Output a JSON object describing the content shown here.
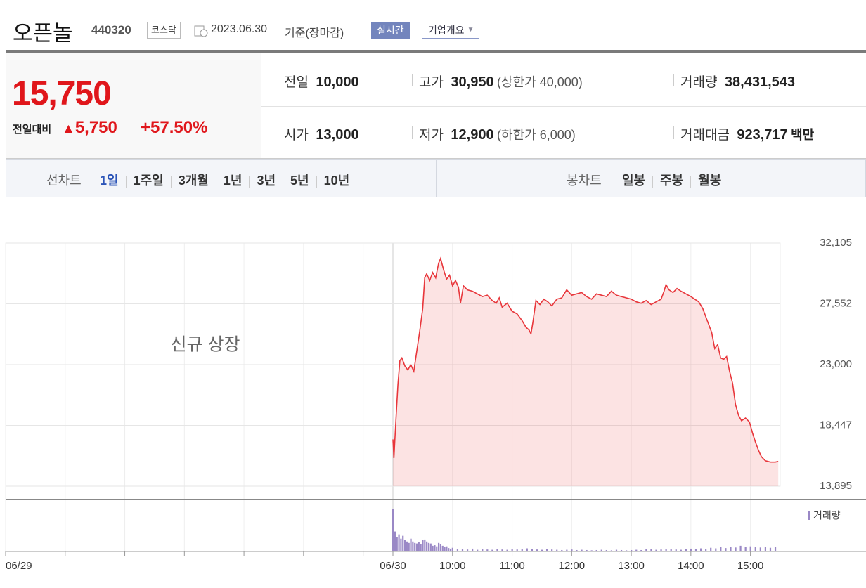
{
  "header": {
    "name": "오픈놀",
    "code": "440320",
    "market": "코스닥",
    "date": "2023.06.30",
    "basis": "기준(장마감)",
    "realtime": "실시간",
    "company": "기업개요"
  },
  "quote": {
    "price": "15,750",
    "change_label": "전일대비",
    "change": "5,750",
    "change_rate": "+57.50%",
    "prev": {
      "label": "전일",
      "value": "10,000"
    },
    "high": {
      "label": "고가",
      "value": "30,950",
      "note": "(상한가 40,000)"
    },
    "volume": {
      "label": "거래량",
      "value": "38,431,543"
    },
    "open": {
      "label": "시가",
      "value": "13,000"
    },
    "low": {
      "label": "저가",
      "value": "12,900",
      "note": "(하한가 6,000)"
    },
    "amount": {
      "label": "거래대금",
      "value": "923,717",
      "unit": "백만"
    }
  },
  "tabs": {
    "line_label": "선차트",
    "line_periods": [
      "1일",
      "1주일",
      "3개월",
      "1년",
      "3년",
      "5년",
      "10년"
    ],
    "candle_label": "봉차트",
    "candle_periods": [
      "일봉",
      "주봉",
      "월봉"
    ]
  },
  "chart_data": [
    {
      "type": "line",
      "annotation": "신규 상장",
      "color": "#e8363b",
      "x": [
        390,
        391,
        393,
        395,
        397,
        399,
        402,
        405,
        408,
        411,
        414,
        417,
        420,
        422,
        424,
        427,
        430,
        433,
        436,
        438,
        441,
        444,
        447,
        450,
        453,
        456,
        458,
        461,
        465,
        470,
        475,
        480,
        485,
        490,
        494,
        497,
        500,
        505,
        510,
        515,
        520,
        524,
        527,
        529,
        531,
        534,
        538,
        542,
        546,
        550,
        555,
        560,
        565,
        570,
        575,
        580,
        585,
        590,
        595,
        600,
        605,
        610,
        615,
        620,
        625,
        630,
        635,
        640,
        645,
        650,
        655,
        660,
        663,
        665,
        668,
        672,
        676,
        680,
        685,
        690,
        694,
        698,
        702,
        705,
        708,
        711,
        714,
        717,
        720,
        723,
        726,
        729,
        732,
        735,
        738,
        741,
        745,
        749,
        752,
        755,
        758,
        761,
        765,
        770,
        775,
        778
      ],
      "values": [
        17400,
        16000,
        18800,
        21500,
        23300,
        23500,
        22900,
        22600,
        23000,
        22500,
        24000,
        25500,
        27200,
        29500,
        29800,
        29300,
        29900,
        29500,
        30600,
        30950,
        30100,
        29400,
        29700,
        28900,
        29300,
        28800,
        27600,
        28900,
        28600,
        28500,
        28300,
        28100,
        28200,
        27800,
        27600,
        28000,
        27300,
        27600,
        27000,
        26800,
        26300,
        25800,
        25600,
        25300,
        26200,
        27800,
        27500,
        27900,
        27700,
        27400,
        27900,
        28000,
        28600,
        28200,
        28300,
        28400,
        28100,
        27900,
        28300,
        28200,
        28100,
        28500,
        28200,
        28100,
        28000,
        27900,
        27700,
        27600,
        27800,
        27500,
        27700,
        27900,
        28500,
        29000,
        28600,
        28400,
        28700,
        28500,
        28300,
        28100,
        27900,
        27700,
        27200,
        26600,
        26000,
        25400,
        24200,
        24500,
        23500,
        23400,
        23600,
        22500,
        21600,
        20000,
        19200,
        18800,
        19000,
        18700,
        17900,
        17200,
        16600,
        16100,
        15800,
        15700,
        15700,
        15750
      ],
      "xlim": [
        0,
        780
      ],
      "xticks": [
        {
          "value": 0,
          "label": "06/29"
        },
        {
          "value": 60,
          "label": null
        },
        {
          "value": 120,
          "label": null
        },
        {
          "value": 180,
          "label": null
        },
        {
          "value": 240,
          "label": null
        },
        {
          "value": 300,
          "label": null
        },
        {
          "value": 360,
          "label": null
        },
        {
          "value": 390,
          "label": "06/30"
        },
        {
          "value": 450,
          "label": "10:00"
        },
        {
          "value": 510,
          "label": "11:00"
        },
        {
          "value": 570,
          "label": "12:00"
        },
        {
          "value": 630,
          "label": "13:00"
        },
        {
          "value": 690,
          "label": "14:00"
        },
        {
          "value": 750,
          "label": "15:00"
        }
      ],
      "ylim": [
        13895,
        32105
      ],
      "yticks": [
        {
          "value": 13895,
          "label": "13,895"
        },
        {
          "value": 18447,
          "label": "18,447"
        },
        {
          "value": 23000,
          "label": "23,000"
        },
        {
          "value": 27552,
          "label": "27,552"
        },
        {
          "value": 32105,
          "label": "32,105"
        }
      ],
      "grid": true
    },
    {
      "type": "bar",
      "name": "거래량",
      "color": "#9a88c6",
      "xlim": [
        0,
        780
      ],
      "ylim": [
        0,
        1600000
      ],
      "x": [
        390,
        392,
        394,
        396,
        398,
        400,
        402,
        404,
        406,
        408,
        410,
        412,
        414,
        416,
        418,
        420,
        422,
        424,
        426,
        428,
        430,
        432,
        434,
        436,
        438,
        440,
        442,
        444,
        446,
        448,
        450,
        455,
        460,
        465,
        470,
        475,
        480,
        485,
        490,
        495,
        500,
        505,
        510,
        515,
        520,
        525,
        530,
        535,
        540,
        545,
        550,
        555,
        560,
        565,
        570,
        575,
        580,
        585,
        590,
        595,
        600,
        605,
        610,
        615,
        620,
        625,
        630,
        635,
        640,
        645,
        650,
        655,
        660,
        665,
        670,
        675,
        680,
        685,
        690,
        695,
        700,
        705,
        710,
        715,
        720,
        725,
        730,
        735,
        740,
        745,
        750,
        755,
        760,
        765,
        770,
        775
      ],
      "values": [
        1500000,
        700000,
        500000,
        600000,
        450000,
        550000,
        400000,
        350000,
        300000,
        450000,
        350000,
        300000,
        280000,
        320000,
        250000,
        400000,
        420000,
        350000,
        300000,
        280000,
        200000,
        220000,
        180000,
        300000,
        250000,
        200000,
        150000,
        180000,
        120000,
        100000,
        130000,
        90000,
        80000,
        70000,
        100000,
        60000,
        80000,
        70000,
        60000,
        90000,
        70000,
        60000,
        80000,
        70000,
        90000,
        110000,
        90000,
        70000,
        60000,
        80000,
        70000,
        60000,
        50000,
        60000,
        70000,
        50000,
        60000,
        50000,
        40000,
        50000,
        60000,
        50000,
        40000,
        60000,
        50000,
        40000,
        50000,
        60000,
        50000,
        90000,
        80000,
        60000,
        70000,
        80000,
        90000,
        70000,
        60000,
        80000,
        100000,
        90000,
        110000,
        80000,
        130000,
        110000,
        150000,
        120000,
        170000,
        140000,
        200000,
        160000,
        180000,
        150000,
        140000,
        170000,
        130000,
        150000
      ]
    }
  ]
}
